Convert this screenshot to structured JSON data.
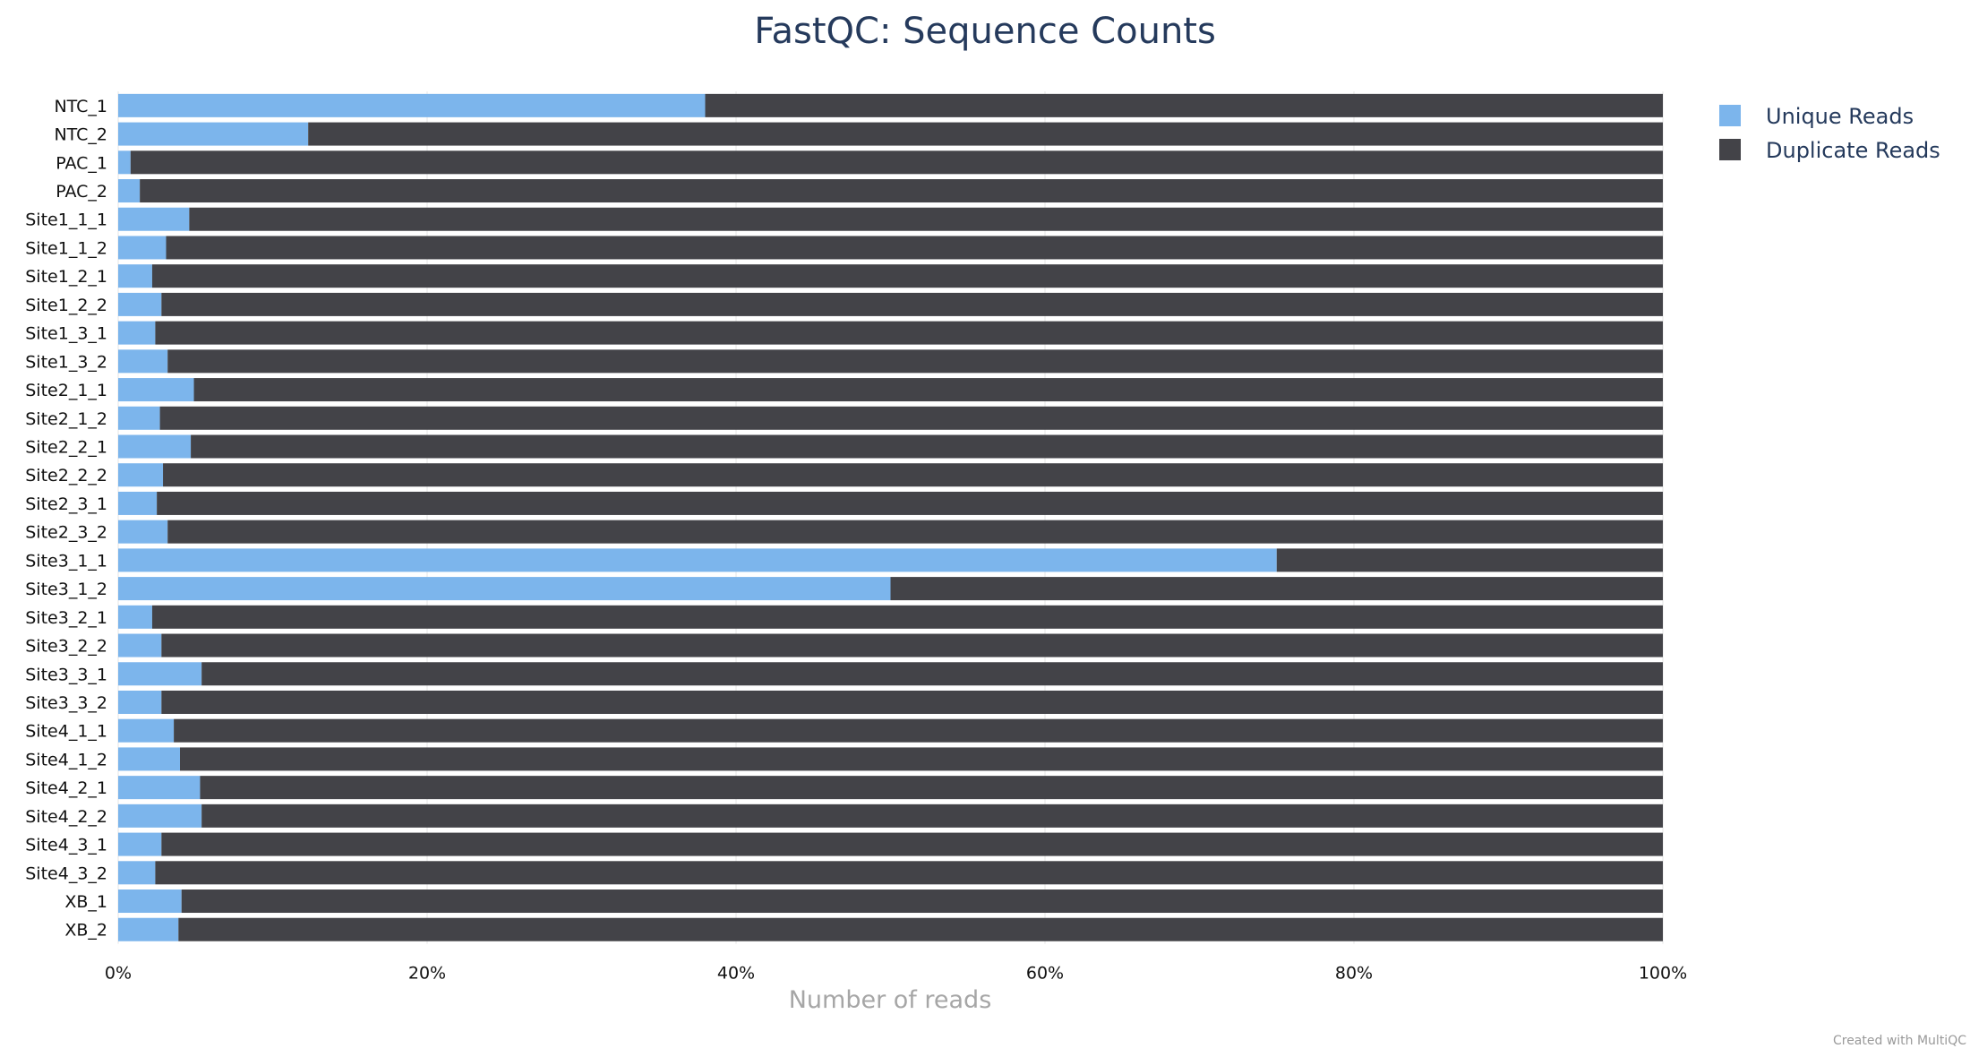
{
  "chart_data": {
    "type": "bar",
    "orientation": "horizontal",
    "stacking": "percent",
    "title": "FastQC: Sequence Counts",
    "xlabel": "Number of reads",
    "ylabel": "",
    "xlim": [
      0,
      100
    ],
    "x_ticks": [
      "0%",
      "20%",
      "40%",
      "60%",
      "80%",
      "100%"
    ],
    "grid": true,
    "legend_position": "top-right",
    "categories": [
      "NTC_1",
      "NTC_2",
      "PAC_1",
      "PAC_2",
      "Site1_1_1",
      "Site1_1_2",
      "Site1_2_1",
      "Site1_2_2",
      "Site1_3_1",
      "Site1_3_2",
      "Site2_1_1",
      "Site2_1_2",
      "Site2_2_1",
      "Site2_2_2",
      "Site2_3_1",
      "Site2_3_2",
      "Site3_1_1",
      "Site3_1_2",
      "Site3_2_1",
      "Site3_2_2",
      "Site3_3_1",
      "Site3_3_2",
      "Site4_1_1",
      "Site4_1_2",
      "Site4_2_1",
      "Site4_2_2",
      "Site4_3_1",
      "Site4_3_2",
      "XB_1",
      "XB_2"
    ],
    "series": [
      {
        "name": "Unique Reads",
        "color": "#7cb5ec",
        "values": [
          38.0,
          12.3,
          0.8,
          1.4,
          4.6,
          3.1,
          2.2,
          2.8,
          2.4,
          3.2,
          4.9,
          2.7,
          4.7,
          2.9,
          2.5,
          3.2,
          75.0,
          50.0,
          2.2,
          2.8,
          5.4,
          2.8,
          3.6,
          4.0,
          5.3,
          5.4,
          2.8,
          2.4,
          4.1,
          3.9
        ]
      },
      {
        "name": "Duplicate Reads",
        "color": "#434348",
        "values": [
          62.0,
          87.7,
          99.2,
          98.6,
          95.4,
          96.9,
          97.8,
          97.2,
          97.6,
          96.8,
          95.1,
          97.3,
          95.3,
          97.1,
          97.5,
          96.8,
          25.0,
          50.0,
          97.8,
          97.2,
          94.6,
          97.2,
          96.4,
          96.0,
          94.7,
          94.6,
          97.2,
          97.6,
          95.9,
          96.1
        ]
      }
    ]
  },
  "credit": "Created with MultiQC"
}
